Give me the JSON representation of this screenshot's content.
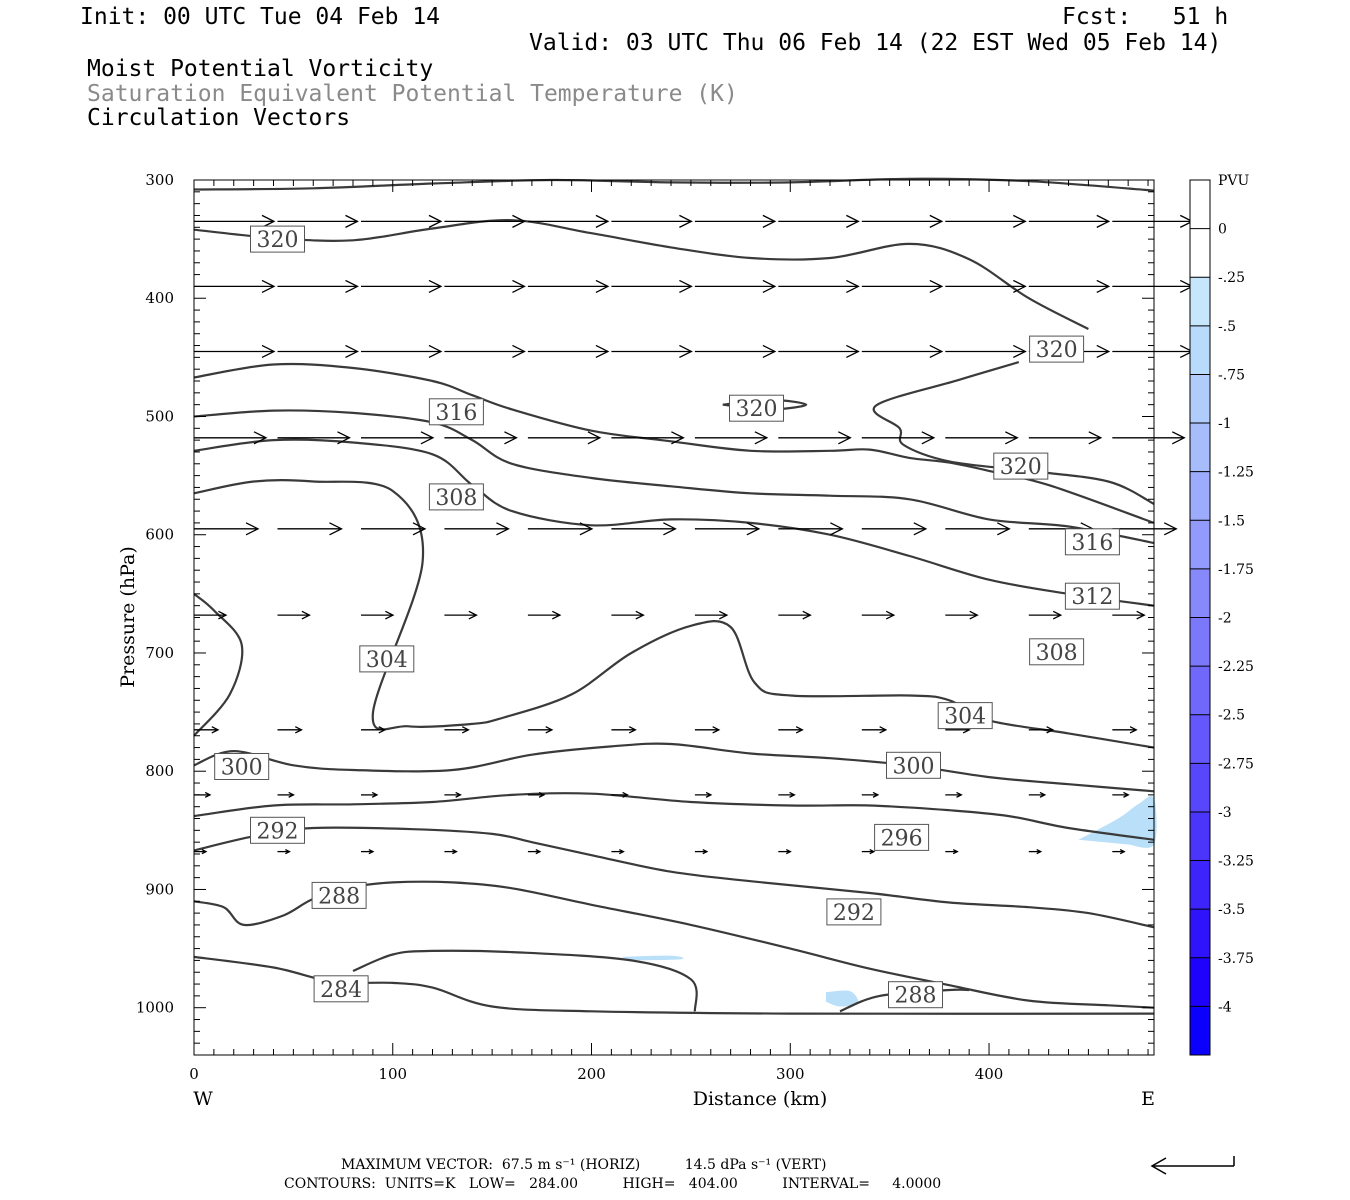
{
  "header": {
    "init": "Init: 00 UTC Tue 04 Feb 14",
    "fcst": "Fcst:   51 h",
    "valid": "Valid: 03 UTC Thu 06 Feb 14 (22 EST Wed 05 Feb 14)",
    "field1": "Moist Potential Vorticity",
    "field2": "Saturation Equivalent Potential Temperature (K)",
    "field3": "Circulation Vectors"
  },
  "footer": {
    "max_vector": "MAXIMUM VECTOR:  67.5 m s⁻¹ (HORIZ)          14.5 dPa s⁻¹ (VERT)",
    "contours": "CONTOURS:  UNITS=K   LOW=   284.00          HIGH=   404.00          INTERVAL=     4.0000"
  },
  "chart_data": {
    "type": "contour-cross-section",
    "xlabel": "Distance (km)",
    "ylabel": "Pressure (hPa)",
    "xlim": [
      0,
      483
    ],
    "ylim": [
      1040,
      300
    ],
    "x_ticks": [
      0,
      100,
      200,
      300,
      400
    ],
    "y_ticks": [
      300,
      400,
      500,
      600,
      700,
      800,
      900,
      1000
    ],
    "x_left_label": "W",
    "x_right_label": "E",
    "colorbar": {
      "units": "PVU",
      "levels": [
        "0",
        "-.25",
        "-.5",
        "-.75",
        "-1",
        "-1.25",
        "-1.5",
        "-1.75",
        "-2",
        "-2.25",
        "-2.5",
        "-2.75",
        "-3",
        "-3.25",
        "-3.5",
        "-3.75",
        "-4"
      ],
      "colors": [
        "#ffffff",
        "#ffffff",
        "#c6e6fb",
        "#b9dbfb",
        "#b0ccfb",
        "#a6bcfb",
        "#9cabfb",
        "#929afb",
        "#8789fb",
        "#7c78fb",
        "#7068fb",
        "#6457fb",
        "#5846fb",
        "#4b35fb",
        "#3d24fb",
        "#2f13fb",
        "#1f02fb",
        "#0a00fb"
      ]
    },
    "contour_labels": [
      {
        "text": "320",
        "x": 42,
        "y": 350
      },
      {
        "text": "320",
        "x": 434,
        "y": 443
      },
      {
        "text": "320",
        "x": 283,
        "y": 493
      },
      {
        "text": "320",
        "x": 416,
        "y": 542
      },
      {
        "text": "316",
        "x": 132,
        "y": 496
      },
      {
        "text": "316",
        "x": 452,
        "y": 606
      },
      {
        "text": "308",
        "x": 132,
        "y": 568
      },
      {
        "text": "312",
        "x": 452,
        "y": 652
      },
      {
        "text": "308",
        "x": 434,
        "y": 699
      },
      {
        "text": "304",
        "x": 97,
        "y": 705
      },
      {
        "text": "304",
        "x": 388,
        "y": 753
      },
      {
        "text": "300",
        "x": 24,
        "y": 796
      },
      {
        "text": "300",
        "x": 362,
        "y": 795
      },
      {
        "text": "292",
        "x": 42,
        "y": 850
      },
      {
        "text": "296",
        "x": 356,
        "y": 856
      },
      {
        "text": "288",
        "x": 73,
        "y": 905
      },
      {
        "text": "292",
        "x": 332,
        "y": 919
      },
      {
        "text": "284",
        "x": 74,
        "y": 984
      },
      {
        "text": "288",
        "x": 363,
        "y": 989
      }
    ],
    "contours": [
      {
        "level": 320,
        "points": [
          [
            0,
            308
          ],
          [
            60,
            307
          ],
          [
            120,
            303
          ],
          [
            180,
            300
          ],
          [
            240,
            302
          ],
          [
            300,
            302
          ],
          [
            360,
            299
          ],
          [
            420,
            301
          ],
          [
            483,
            309
          ]
        ]
      },
      {
        "level": 320,
        "points": [
          [
            0,
            342
          ],
          [
            40,
            349
          ],
          [
            80,
            351
          ],
          [
            120,
            341
          ],
          [
            160,
            334
          ],
          [
            200,
            345
          ],
          [
            240,
            357
          ],
          [
            280,
            366
          ],
          [
            320,
            366
          ],
          [
            360,
            354
          ],
          [
            390,
            367
          ],
          [
            420,
            400
          ],
          [
            450,
            426
          ]
        ]
      },
      {
        "level": 320,
        "points": [
          [
            266,
            490
          ],
          [
            290,
            486
          ],
          [
            308,
            490
          ],
          [
            290,
            494
          ],
          [
            266,
            490
          ]
        ]
      },
      {
        "level": 320,
        "points": [
          [
            415,
            454
          ],
          [
            385,
            469
          ],
          [
            343,
            491
          ],
          [
            355,
            510
          ],
          [
            357,
            524
          ],
          [
            380,
            538
          ],
          [
            420,
            546
          ],
          [
            460,
            555
          ],
          [
            483,
            574
          ]
        ]
      },
      {
        "level": 316,
        "points": [
          [
            0,
            467
          ],
          [
            40,
            456
          ],
          [
            80,
            459
          ],
          [
            120,
            470
          ],
          [
            140,
            482
          ],
          [
            160,
            494
          ],
          [
            200,
            512
          ],
          [
            240,
            521
          ],
          [
            280,
            529
          ],
          [
            320,
            529
          ],
          [
            340,
            528
          ],
          [
            360,
            535
          ],
          [
            380,
            539
          ],
          [
            400,
            546
          ],
          [
            430,
            558
          ],
          [
            483,
            590
          ]
        ]
      },
      {
        "level": 312,
        "points": [
          [
            0,
            500
          ],
          [
            40,
            495
          ],
          [
            80,
            497
          ],
          [
            120,
            505
          ],
          [
            140,
            520
          ],
          [
            160,
            540
          ],
          [
            200,
            552
          ],
          [
            240,
            559
          ],
          [
            280,
            565
          ],
          [
            320,
            567
          ],
          [
            360,
            570
          ],
          [
            400,
            587
          ],
          [
            440,
            593
          ],
          [
            483,
            607
          ]
        ]
      },
      {
        "level": 308,
        "points": [
          [
            0,
            529
          ],
          [
            40,
            520
          ],
          [
            80,
            522
          ],
          [
            120,
            532
          ],
          [
            140,
            558
          ],
          [
            160,
            580
          ],
          [
            200,
            592
          ],
          [
            240,
            587
          ],
          [
            280,
            590
          ],
          [
            320,
            600
          ],
          [
            360,
            618
          ],
          [
            400,
            638
          ],
          [
            440,
            650
          ],
          [
            483,
            660
          ]
        ]
      },
      {
        "level": 304,
        "points": [
          [
            0,
            565
          ],
          [
            30,
            555
          ],
          [
            60,
            555
          ],
          [
            100,
            563
          ],
          [
            115,
            623
          ],
          [
            90,
            751
          ],
          [
            108,
            762
          ],
          [
            140,
            760
          ],
          [
            155,
            755
          ],
          [
            190,
            735
          ],
          [
            220,
            700
          ],
          [
            250,
            677
          ],
          [
            270,
            678
          ],
          [
            282,
            725
          ],
          [
            300,
            736
          ],
          [
            360,
            736
          ],
          [
            380,
            740
          ],
          [
            400,
            757
          ],
          [
            440,
            768
          ],
          [
            483,
            780
          ]
        ]
      },
      {
        "level": 304,
        "points": [
          [
            0,
            650
          ],
          [
            10,
            664
          ],
          [
            24,
            693
          ],
          [
            18,
            735
          ],
          [
            0,
            770
          ]
        ]
      },
      {
        "level": 300,
        "points": [
          [
            0,
            795
          ],
          [
            20,
            783
          ],
          [
            50,
            795
          ],
          [
            80,
            799
          ],
          [
            130,
            799
          ],
          [
            170,
            786
          ],
          [
            210,
            779
          ],
          [
            240,
            777
          ],
          [
            280,
            785
          ],
          [
            320,
            789
          ],
          [
            360,
            795
          ],
          [
            400,
            805
          ],
          [
            440,
            811
          ],
          [
            483,
            817
          ]
        ]
      },
      {
        "level": 296,
        "points": [
          [
            0,
            838
          ],
          [
            40,
            829
          ],
          [
            80,
            828
          ],
          [
            120,
            826
          ],
          [
            160,
            820
          ],
          [
            200,
            819
          ],
          [
            250,
            826
          ],
          [
            300,
            829
          ],
          [
            340,
            829
          ],
          [
            380,
            833
          ],
          [
            410,
            838
          ],
          [
            440,
            848
          ],
          [
            483,
            858
          ]
        ]
      },
      {
        "level": 292,
        "points": [
          [
            0,
            867
          ],
          [
            30,
            855
          ],
          [
            60,
            848
          ],
          [
            110,
            849
          ],
          [
            150,
            853
          ],
          [
            170,
            860
          ],
          [
            200,
            871
          ],
          [
            240,
            885
          ],
          [
            280,
            893
          ],
          [
            340,
            903
          ],
          [
            380,
            911
          ],
          [
            420,
            915
          ],
          [
            450,
            920
          ],
          [
            483,
            932
          ]
        ]
      },
      {
        "level": 288,
        "points": [
          [
            0,
            910
          ],
          [
            15,
            915
          ],
          [
            25,
            930
          ],
          [
            45,
            922
          ],
          [
            60,
            908
          ],
          [
            80,
            898
          ],
          [
            100,
            894
          ],
          [
            130,
            894
          ],
          [
            160,
            899
          ],
          [
            200,
            913
          ],
          [
            250,
            930
          ],
          [
            300,
            950
          ],
          [
            340,
            967
          ],
          [
            380,
            981
          ],
          [
            420,
            994
          ],
          [
            460,
            998
          ],
          [
            483,
            1000
          ]
        ]
      },
      {
        "level": 284,
        "points": [
          [
            0,
            957
          ],
          [
            40,
            966
          ],
          [
            70,
            978
          ],
          [
            100,
            979
          ],
          [
            120,
            983
          ],
          [
            150,
            999
          ],
          [
            200,
            1003
          ],
          [
            300,
            1005
          ],
          [
            483,
            1005
          ]
        ]
      },
      {
        "level": 288,
        "points": [
          [
            80,
            969
          ],
          [
            100,
            955
          ],
          [
            120,
            952
          ],
          [
            160,
            953
          ],
          [
            220,
            960
          ],
          [
            250,
            976
          ],
          [
            252,
            1003
          ]
        ]
      },
      {
        "level": 288,
        "points": [
          [
            325,
            1003
          ],
          [
            345,
            990
          ],
          [
            380,
            985
          ],
          [
            390,
            985
          ]
        ]
      }
    ],
    "shaded_regions": [
      {
        "pvu": -0.25,
        "points": [
          [
            445,
            858
          ],
          [
            465,
            840
          ],
          [
            475,
            828
          ],
          [
            483,
            823
          ],
          [
            483,
            862
          ],
          [
            470,
            862
          ]
        ]
      },
      {
        "pvu": -0.25,
        "points": [
          [
            318,
            987
          ],
          [
            330,
            986
          ],
          [
            334,
            996
          ],
          [
            325,
            999
          ],
          [
            318,
            995
          ]
        ]
      },
      {
        "pvu": -0.25,
        "points": [
          [
            215,
            957
          ],
          [
            240,
            956
          ],
          [
            245,
            959
          ],
          [
            220,
            960
          ]
        ]
      }
    ],
    "vector_rows": [
      {
        "p": 335,
        "u": 40,
        "w": 0
      },
      {
        "p": 390,
        "u": 40,
        "w": 0
      },
      {
        "p": 445,
        "u": 40,
        "w": 0
      },
      {
        "p": 518,
        "u": 36,
        "w": 0
      },
      {
        "p": 595,
        "u": 32,
        "w": 0
      },
      {
        "p": 668,
        "u": 16,
        "w": 0
      },
      {
        "p": 765,
        "u": 12,
        "w": 0
      },
      {
        "p": 820,
        "u": 8,
        "w": 0
      },
      {
        "p": 868,
        "u": 6,
        "w": 0
      }
    ]
  }
}
